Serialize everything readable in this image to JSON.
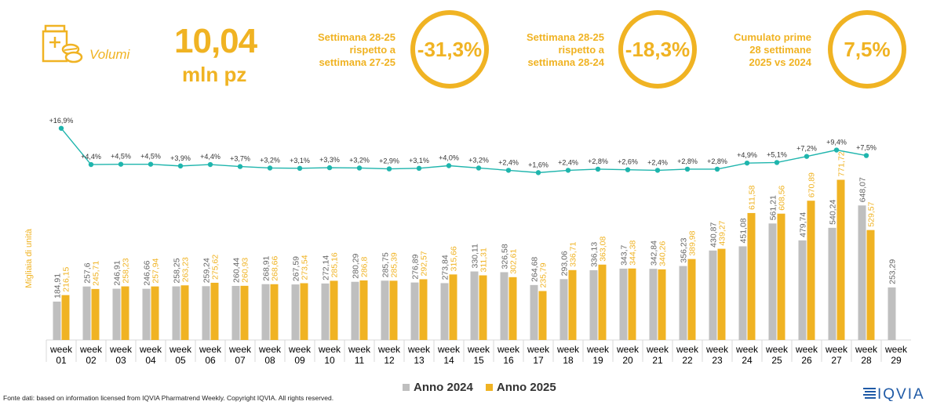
{
  "header": {
    "icon": "pill-box-icon",
    "title": "Volumi",
    "value": "10,04",
    "unit": "mln pz"
  },
  "kpis": [
    {
      "label_lines": [
        "Settimana 28-25",
        "rispetto a",
        "settimana 27-25"
      ],
      "value": "-31,3%"
    },
    {
      "label_lines": [
        "Settimana 28-25",
        "rispetto a",
        "settimana 28-24"
      ],
      "value": "-18,3%"
    },
    {
      "label_lines": [
        "Cumulato prime",
        "28 settimane",
        "2025 vs 2024"
      ],
      "value": "7,5%"
    }
  ],
  "colors": {
    "accent": "#f0b323",
    "bar_2024": "#bfbfbf",
    "bar_2025": "#f0b323",
    "line": "#1fb5ad",
    "bar_label_2024": "#666666",
    "bar_label_2025": "#f0b323"
  },
  "chart_data": {
    "type": "bar",
    "ylabel": "Migliaia di unità",
    "categories": [
      "week 01",
      "week 02",
      "week 03",
      "week 04",
      "week 05",
      "week 06",
      "week 07",
      "week 08",
      "week 09",
      "week 10",
      "week 11",
      "week 12",
      "week 13",
      "week 14",
      "week 15",
      "week 16",
      "week 17",
      "week 18",
      "week 19",
      "week 20",
      "week 21",
      "week 22",
      "week 23",
      "week 24",
      "week 25",
      "week 26",
      "week 27",
      "week 28",
      "week 29"
    ],
    "series": [
      {
        "name": "Anno 2024",
        "values": [
          184.91,
          257.6,
          246.91,
          246.66,
          258.25,
          259.24,
          260.44,
          268.91,
          267.59,
          272.14,
          280.29,
          285.75,
          276.89,
          273.84,
          330.11,
          326.58,
          264.68,
          293.06,
          336.13,
          343.7,
          342.84,
          356.23,
          430.87,
          451.08,
          561.21,
          479.74,
          540.24,
          648.07,
          253.29
        ],
        "labels": [
          "184,91",
          "257,6",
          "246,91",
          "246,66",
          "258,25",
          "259,24",
          "260,44",
          "268,91",
          "267,59",
          "272,14",
          "280,29",
          "285,75",
          "276,89",
          "273,84",
          "330,11",
          "326,58",
          "264,68",
          "293,06",
          "336,13",
          "343,7",
          "342,84",
          "356,23",
          "430,87",
          "451,08",
          "561,21",
          "479,74",
          "540,24",
          "648,07",
          "253,29"
        ]
      },
      {
        "name": "Anno 2025",
        "values": [
          216.15,
          245.71,
          258.23,
          257.94,
          263.23,
          275.62,
          260.93,
          268.66,
          273.54,
          285.16,
          286.8,
          285.39,
          292.57,
          315.66,
          311.31,
          302.61,
          235.79,
          336.71,
          363.08,
          344.38,
          340.26,
          389.98,
          439.27,
          611.58,
          608.56,
          670.89,
          771.72,
          529.57,
          null
        ],
        "labels": [
          "216,15",
          "245,71",
          "258,23",
          "257,94",
          "263,23",
          "275,62",
          "260,93",
          "268,66",
          "273,54",
          "285,16",
          "286,8",
          "285,39",
          "292,57",
          "315,66",
          "311,31",
          "302,61",
          "235,79",
          "336,71",
          "363,08",
          "344,38",
          "340,26",
          "389,98",
          "439,27",
          "611,58",
          "608,56",
          "670,89",
          "771,72",
          "529,57",
          ""
        ]
      }
    ],
    "growth": {
      "values": [
        16.9,
        4.4,
        4.5,
        4.5,
        3.9,
        4.4,
        3.7,
        3.2,
        3.1,
        3.3,
        3.2,
        2.9,
        3.1,
        4.0,
        3.2,
        2.4,
        1.6,
        2.4,
        2.8,
        2.6,
        2.4,
        2.8,
        2.8,
        4.9,
        5.1,
        7.2,
        9.4,
        7.5
      ],
      "labels": [
        "+16,9%",
        "+4,4%",
        "+4,5%",
        "+4,5%",
        "+3,9%",
        "+4,4%",
        "+3,7%",
        "+3,2%",
        "+3,1%",
        "+3,3%",
        "+3,2%",
        "+2,9%",
        "+3,1%",
        "+4,0%",
        "+3,2%",
        "+2,4%",
        "+1,6%",
        "+2,4%",
        "+2,8%",
        "+2,6%",
        "+2,4%",
        "+2,8%",
        "+2,8%",
        "+4,9%",
        "+5,1%",
        "+7,2%",
        "+9,4%",
        "+7,5%"
      ]
    },
    "legend": [
      "Anno 2024",
      "Anno 2025"
    ],
    "legend_position": "bottom",
    "grid": false
  },
  "footer": "Fonte dati: based on information licensed from IQVIA Pharmatrend Weekly. Copyright IQVIA. All rights reserved.",
  "logo_text": "IQVIA"
}
